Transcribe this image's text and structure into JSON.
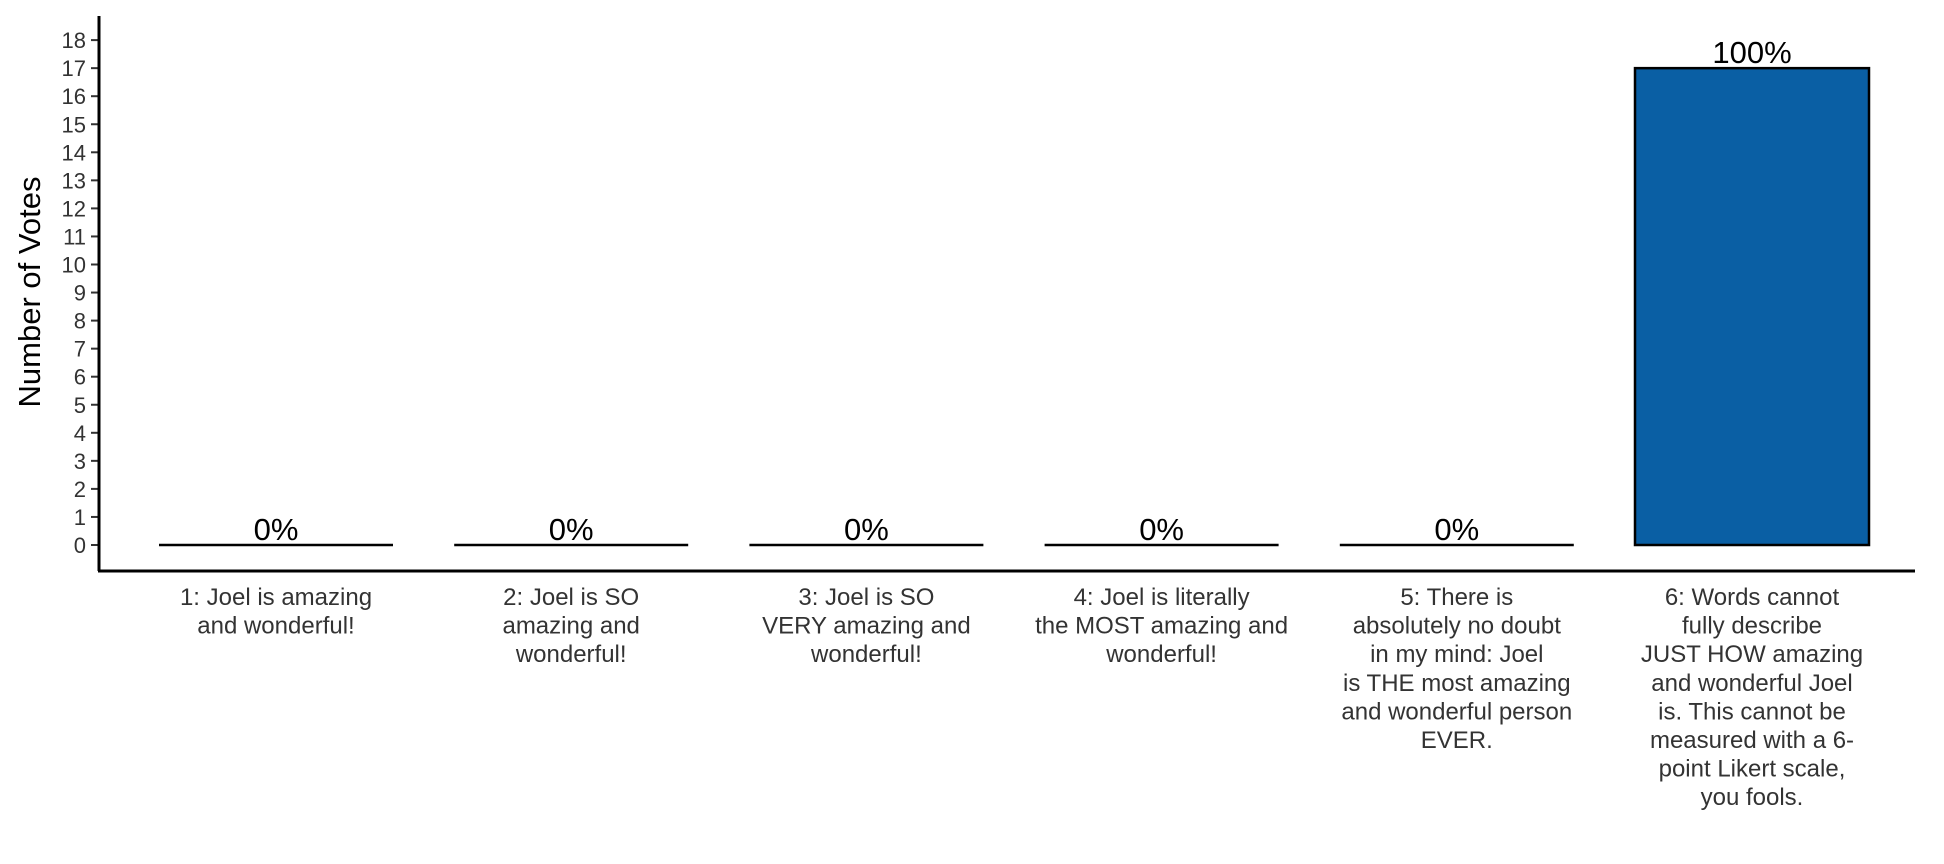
{
  "chart_data": {
    "type": "bar",
    "title": "",
    "xlabel": "",
    "ylabel": "Number of Votes",
    "ylim": [
      0,
      18
    ],
    "yticks": [
      0,
      1,
      2,
      3,
      4,
      5,
      6,
      7,
      8,
      9,
      10,
      11,
      12,
      13,
      14,
      15,
      16,
      17,
      18
    ],
    "grid": false,
    "legend": "none",
    "bar_color": "#0A5FA4",
    "categories": [
      [
        "1: Joel is amazing",
        "and wonderful!"
      ],
      [
        "2: Joel is SO",
        "amazing and",
        "wonderful!"
      ],
      [
        "3: Joel is SO",
        "VERY amazing and",
        "wonderful!"
      ],
      [
        "4: Joel is literally",
        "the MOST amazing and",
        "wonderful!"
      ],
      [
        "5: There is",
        "absolutely no doubt",
        "in my mind: Joel",
        "is THE most amazing",
        "and wonderful person",
        "EVER."
      ],
      [
        "6: Words cannot",
        "fully describe",
        "JUST HOW amazing",
        "and wonderful Joel",
        "is. This cannot be",
        "measured with a 6-",
        "point Likert scale,",
        "you fools."
      ]
    ],
    "values": [
      0,
      0,
      0,
      0,
      0,
      17
    ],
    "data_labels": [
      "0%",
      "0%",
      "0%",
      "0%",
      "0%",
      "100%"
    ]
  }
}
